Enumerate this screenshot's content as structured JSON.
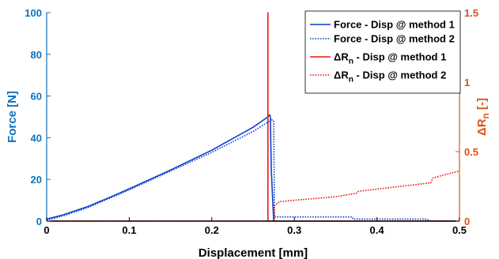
{
  "colors": {
    "force": "#0b3fcf",
    "resistance": "#e41b12",
    "left_axis": "#0d72bd",
    "right_axis": "#d95319",
    "axis_black": "#000000"
  },
  "chart_data": {
    "type": "line",
    "title": "",
    "xlabel": "Displacement [mm]",
    "ylabel_left": "Force [N]",
    "ylabel_right": "ΔR_n [-]",
    "xlim": [
      0,
      0.5
    ],
    "ylim_left": [
      0,
      100
    ],
    "ylim_right": [
      0,
      1.5
    ],
    "x_ticks": [
      0,
      0.1,
      0.2,
      0.3,
      0.4,
      0.5
    ],
    "x_tick_labels": [
      "0",
      "0.1",
      "0.2",
      "0.3",
      "0.4",
      "0.5"
    ],
    "y_left_ticks": [
      0,
      20,
      40,
      60,
      80,
      100
    ],
    "y_left_tick_labels": [
      "0",
      "20",
      "40",
      "60",
      "80",
      "100"
    ],
    "y_right_ticks": [
      0,
      0.5,
      1,
      1.5
    ],
    "y_right_tick_labels": [
      "0",
      "0.5",
      "1",
      "1.5"
    ],
    "grid": false,
    "legend_position": "top-right",
    "series": [
      {
        "name": "Force - Disp @ method 1",
        "axis": "left",
        "style": "solid",
        "color": "#0b3fcf",
        "x": [
          0,
          0.02,
          0.05,
          0.08,
          0.1,
          0.15,
          0.2,
          0.25,
          0.268,
          0.27,
          0.271,
          0.272,
          0.275,
          0.3,
          0.5
        ],
        "y": [
          1,
          3,
          7,
          12,
          15.5,
          24.5,
          34,
          45,
          50,
          51,
          50,
          25,
          0,
          0,
          0
        ]
      },
      {
        "name": "Force - Disp @ method 2",
        "axis": "left",
        "style": "dotted",
        "color": "#0b3fcf",
        "x": [
          0,
          0.02,
          0.05,
          0.08,
          0.1,
          0.15,
          0.2,
          0.25,
          0.27,
          0.272,
          0.273,
          0.275,
          0.276,
          0.28,
          0.37,
          0.371,
          0.46,
          0.465,
          0.5
        ],
        "y": [
          0.5,
          2.5,
          6.5,
          11.5,
          15,
          24,
          33,
          43,
          48,
          49,
          48.5,
          48,
          2,
          2,
          2,
          1,
          1,
          0,
          0
        ]
      },
      {
        "name": "ΔR_n - Disp @ method 1",
        "axis": "right",
        "style": "solid",
        "color": "#e41b12",
        "x": [
          0,
          0.268,
          0.268,
          0.268,
          0.5
        ],
        "y": [
          0,
          0,
          1.5,
          0,
          0
        ]
      },
      {
        "name": "ΔR_n - Disp @ method 2",
        "axis": "right",
        "style": "dotted",
        "color": "#e41b12",
        "x": [
          0,
          0.276,
          0.276,
          0.28,
          0.282,
          0.3,
          0.35,
          0.375,
          0.378,
          0.4,
          0.45,
          0.465,
          0.468,
          0.48,
          0.5
        ],
        "y": [
          0,
          0,
          0.11,
          0.13,
          0.14,
          0.15,
          0.175,
          0.2,
          0.215,
          0.23,
          0.265,
          0.275,
          0.31,
          0.33,
          0.36
        ]
      }
    ],
    "legend": [
      {
        "label": "Force - Disp @ method 1",
        "color": "#0b3fcf",
        "style": "solid"
      },
      {
        "label": "Force - Disp @ method 2",
        "color": "#0b3fcf",
        "style": "dotted"
      },
      {
        "label": "ΔR_n - Disp @ method 1",
        "color": "#e41b12",
        "style": "solid"
      },
      {
        "label": "ΔR_n - Disp @ method 2",
        "color": "#e41b12",
        "style": "dotted"
      }
    ]
  }
}
